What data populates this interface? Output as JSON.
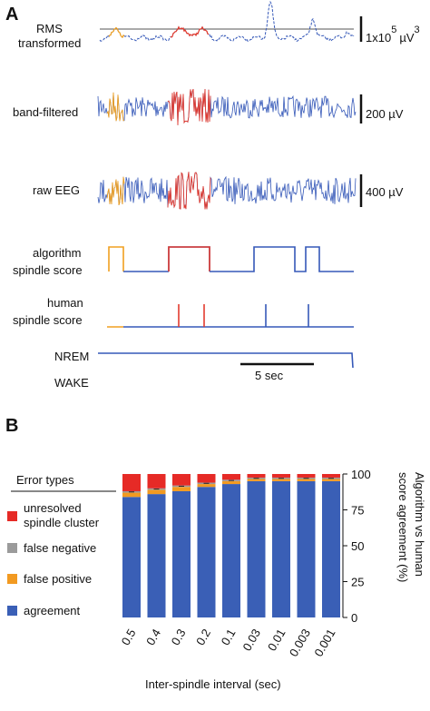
{
  "panel_a": {
    "letter": "A",
    "traces": [
      {
        "id": "rms",
        "label_lines": [
          "RMS",
          "transformed"
        ],
        "scale": "1x10",
        "scale_exp": "5",
        "scale_unit": "µV",
        "scale_unit_exp": "3"
      },
      {
        "id": "band",
        "label_lines": [
          "band-filtered"
        ],
        "scale": "200 µV"
      },
      {
        "id": "raw",
        "label_lines": [
          "raw EEG"
        ],
        "scale": "400 µV"
      }
    ],
    "algorithm_label": [
      "algorithm",
      "spindle score"
    ],
    "human_label": [
      "human",
      "spindle score"
    ],
    "state_labels": [
      "NREM",
      "WAKE"
    ],
    "time_scale": "5 sec",
    "colors": {
      "trace": "#3558b8",
      "false_positive": "#f0a020",
      "cluster": "#e33b2e"
    }
  },
  "chart_data": {
    "type": "bar",
    "stacked": true,
    "panel_letter": "B",
    "categories": [
      "0.5",
      "0.4",
      "0.3",
      "0.2",
      "0.1",
      "0.03",
      "0.01",
      "0.003",
      "0.001"
    ],
    "series": [
      {
        "name": "agreement",
        "color": "#3a5fb6",
        "values": [
          84,
          86,
          88,
          91,
          93,
          95,
          95,
          95,
          95
        ]
      },
      {
        "name": "false positive",
        "color": "#f29a21",
        "values": [
          3,
          3,
          3,
          2,
          2,
          1.5,
          1.5,
          1.5,
          1.5
        ]
      },
      {
        "name": "false negative",
        "color": "#9b9b9b",
        "values": [
          1,
          1,
          1,
          1,
          1,
          1,
          1,
          1,
          1
        ]
      },
      {
        "name": "unresolved spindle cluster",
        "color": "#e62a26",
        "values": [
          12,
          10,
          8,
          6,
          4,
          2.5,
          2.5,
          2.5,
          2.5
        ]
      }
    ],
    "legend_title": "Error types",
    "legend_order": [
      "unresolved spindle cluster",
      "false negative",
      "false positive",
      "agreement"
    ],
    "xlabel": "Inter-spindle interval (sec)",
    "ylabel": "Algorithm vs human score agreement (%)",
    "yticks": [
      0,
      25,
      50,
      75,
      100
    ],
    "ylim": [
      0,
      100
    ],
    "legend_position": "left"
  }
}
